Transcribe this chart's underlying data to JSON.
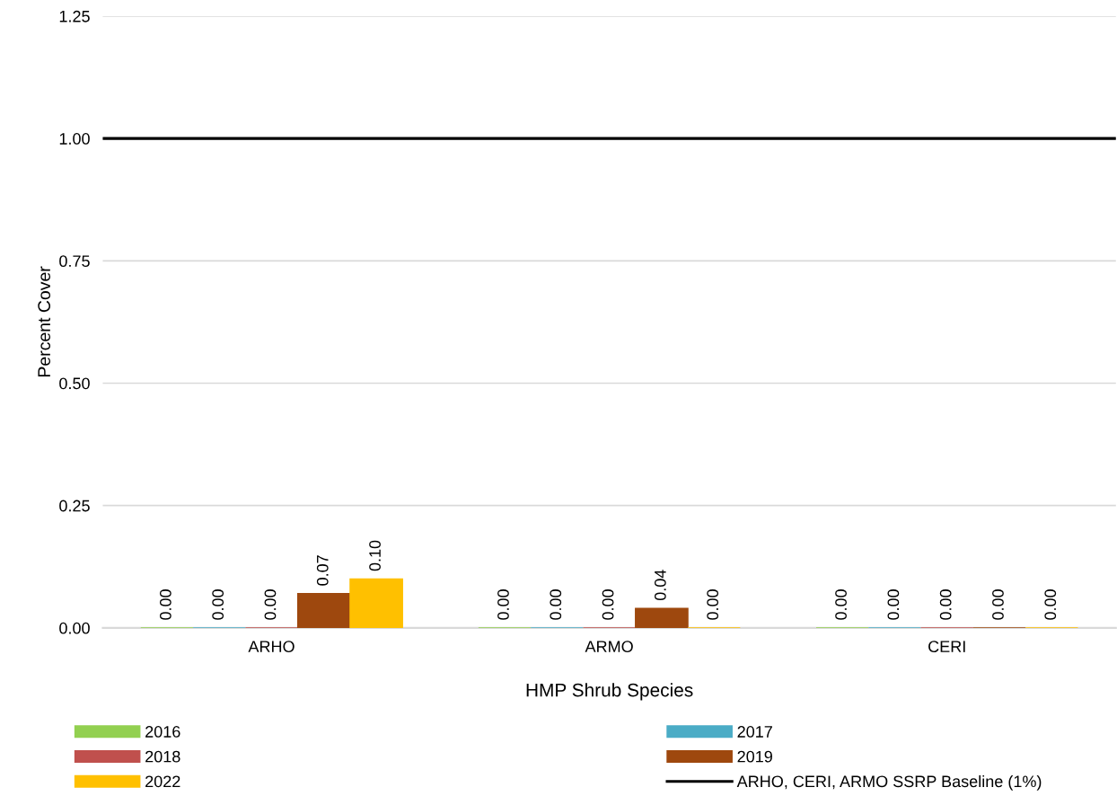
{
  "chart_data": {
    "type": "bar",
    "xlabel": "HMP Shrub Species",
    "ylabel": "Percent Cover",
    "categories": [
      "ARHO",
      "ARMO",
      "CERI"
    ],
    "series": [
      {
        "name": "2016",
        "color": "#92d050",
        "values": [
          0,
          0,
          0
        ],
        "value_labels": [
          "0.00",
          "0.00",
          "0.00"
        ]
      },
      {
        "name": "2017",
        "color": "#4bacc6",
        "values": [
          0,
          0,
          0
        ],
        "value_labels": [
          "0.00",
          "0.00",
          "0.00"
        ]
      },
      {
        "name": "2018",
        "color": "#c0504d",
        "values": [
          0,
          0,
          0
        ],
        "value_labels": [
          "0.00",
          "0.00",
          "0.00"
        ]
      },
      {
        "name": "2019",
        "color": "#9e480e",
        "values": [
          0.07,
          0.04,
          0
        ],
        "value_labels": [
          "0.07",
          "0.04",
          "0.00"
        ]
      },
      {
        "name": "2022",
        "color": "#ffc000",
        "values": [
          0.1,
          0,
          0
        ],
        "value_labels": [
          "0.10",
          "0.00",
          "0.00"
        ]
      }
    ],
    "ylim": [
      0,
      1.25
    ],
    "yticks": [
      {
        "value": 0,
        "label": "0.00"
      },
      {
        "value": 0.25,
        "label": "0.25"
      },
      {
        "value": 0.5,
        "label": "0.50"
      },
      {
        "value": 0.75,
        "label": "0.75"
      },
      {
        "value": 1,
        "label": "1.00"
      },
      {
        "value": 1.25,
        "label": "1.25"
      }
    ],
    "ref_lines": [
      {
        "axis": "y",
        "value": 1,
        "label": "ARHO, CERI, ARMO SSRP Baseline (1%)",
        "color": "#000000",
        "line_style": "solid"
      }
    ],
    "grid": "y",
    "legend": "bottom"
  }
}
